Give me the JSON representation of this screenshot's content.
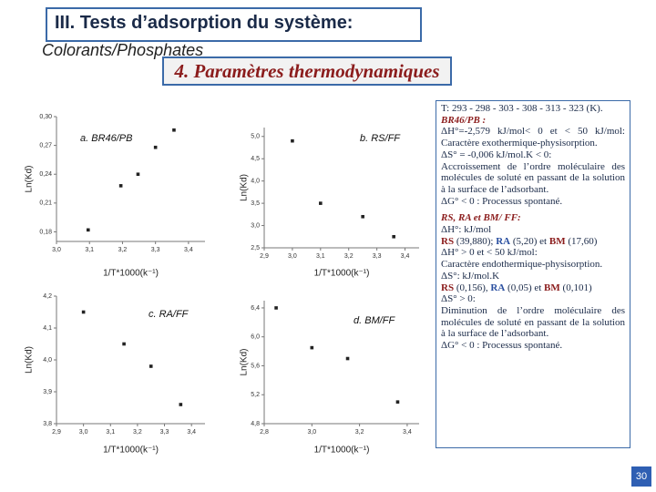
{
  "header": {
    "title": "III. Tests d’adsorption du système:",
    "subtitle": "Colorants/Phosphates",
    "section": "4. Paramètres thermodynamiques"
  },
  "chart_data": [
    {
      "type": "scatter",
      "title": "a. BR46/PB",
      "xlabel": "1/T*1000(k⁻¹)",
      "ylabel": "Ln(Kd)",
      "color": "#222",
      "x": [
        3.096,
        3.195,
        3.247,
        3.3,
        3.356
      ],
      "y": [
        0.182,
        0.228,
        0.24,
        0.268,
        0.286
      ],
      "xlim": [
        3.0,
        3.45
      ],
      "ylim": [
        0.17,
        0.3
      ],
      "xticks": [
        {
          "value": 3.0,
          "label": "3,0"
        },
        {
          "value": 3.1,
          "label": "3,1"
        },
        {
          "value": 3.2,
          "label": "3,2"
        },
        {
          "value": 3.3,
          "label": "3,3"
        },
        {
          "value": 3.4,
          "label": "3,4"
        }
      ],
      "yticks": [
        {
          "value": 0.18,
          "label": "0,18"
        },
        {
          "value": 0.21,
          "label": "0,21"
        },
        {
          "value": 0.24,
          "label": "0,24"
        },
        {
          "value": 0.27,
          "label": "0,27"
        },
        {
          "value": 0.3,
          "label": "0,30"
        }
      ]
    },
    {
      "type": "scatter",
      "title": "b. RS/FF",
      "xlabel": "1/T*1000(k⁻¹)",
      "ylabel": "Ln(Kd)",
      "color": "#222",
      "x": [
        3.0,
        3.1,
        3.25,
        3.36
      ],
      "y": [
        4.9,
        3.5,
        3.2,
        2.75
      ],
      "xlim": [
        2.9,
        3.45
      ],
      "ylim": [
        2.5,
        5.2
      ],
      "xticks": [
        {
          "value": 2.9,
          "label": "2,9"
        },
        {
          "value": 3.0,
          "label": "3,0"
        },
        {
          "value": 3.1,
          "label": "3,1"
        },
        {
          "value": 3.2,
          "label": "3,2"
        },
        {
          "value": 3.3,
          "label": "3,3"
        },
        {
          "value": 3.4,
          "label": "3,4"
        }
      ],
      "yticks": [
        {
          "value": 2.5,
          "label": "2,5"
        },
        {
          "value": 3.0,
          "label": "3,0"
        },
        {
          "value": 3.5,
          "label": "3,5"
        },
        {
          "value": 4.0,
          "label": "4,0"
        },
        {
          "value": 4.5,
          "label": "4,5"
        },
        {
          "value": 5.0,
          "label": "5,0"
        }
      ]
    },
    {
      "type": "scatter",
      "title": "c. RA/FF",
      "xlabel": "1/T*1000(k⁻¹)",
      "ylabel": "Ln(Kd)",
      "color": "#222",
      "x": [
        3.0,
        3.15,
        3.25,
        3.36
      ],
      "y": [
        4.15,
        4.05,
        3.98,
        3.86
      ],
      "xlim": [
        2.9,
        3.45
      ],
      "ylim": [
        3.8,
        4.2
      ],
      "xticks": [
        {
          "value": 2.9,
          "label": "2,9"
        },
        {
          "value": 3.0,
          "label": "3,0"
        },
        {
          "value": 3.1,
          "label": "3,1"
        },
        {
          "value": 3.2,
          "label": "3,2"
        },
        {
          "value": 3.3,
          "label": "3,3"
        },
        {
          "value": 3.4,
          "label": "3,4"
        }
      ],
      "yticks": [
        {
          "value": 3.8,
          "label": "3,8"
        },
        {
          "value": 3.9,
          "label": "3,9"
        },
        {
          "value": 4.0,
          "label": "4,0"
        },
        {
          "value": 4.1,
          "label": "4,1"
        },
        {
          "value": 4.2,
          "label": "4,2"
        }
      ]
    },
    {
      "type": "scatter",
      "title": "d. BM/FF",
      "xlabel": "1/T*1000(k⁻¹)",
      "ylabel": "Ln(Kd)",
      "color": "#222",
      "x": [
        2.85,
        3.0,
        3.15,
        3.36
      ],
      "y": [
        6.4,
        5.85,
        5.7,
        5.1
      ],
      "xlim": [
        2.8,
        3.45
      ],
      "ylim": [
        4.8,
        6.5
      ],
      "xticks": [
        {
          "value": 2.8,
          "label": "2,8"
        },
        {
          "value": 3.0,
          "label": "3,0"
        },
        {
          "value": 3.2,
          "label": "3,2"
        },
        {
          "value": 3.4,
          "label": "3,4"
        }
      ],
      "yticks": [
        {
          "value": 4.8,
          "label": "4,8"
        },
        {
          "value": 5.2,
          "label": "5,2"
        },
        {
          "value": 5.6,
          "label": "5,6"
        },
        {
          "value": 6.0,
          "label": "6,0"
        },
        {
          "value": 6.4,
          "label": "6,4"
        }
      ]
    }
  ],
  "text_panel": {
    "top": [
      "T: 293 - 298 - 303 - 308 - 313 - 323 (K).",
      "BR46/PB :",
      "ΔH°=-2,579 kJ/mol< 0 et < 50 kJ/mol: Caractère exothermique-physisorption.",
      "ΔS° = -0,006 kJ/mol.K < 0:",
      "Accroissement de l’ordre moléculaire des molécules de soluté en passant de la solution à la surface de l’adsorbant.",
      "ΔG° < 0 : Processus spontané."
    ],
    "bottom": [
      "RS, RA et BM/ FF:",
      "ΔH°: kJ/mol",
      [
        "RS",
        " (39,880); ",
        "RA",
        " (5,20) et ",
        "BM",
        " (17,60)"
      ],
      "ΔH° > 0 et < 50 kJ/mol:",
      "Caractère endothermique-physisorption.",
      "ΔS°: kJ/mol.K",
      [
        "RS",
        " (0,156), ",
        "RA",
        " (0,05) et ",
        "BM",
        " (0,101)"
      ],
      "ΔS° > 0:",
      "Diminution de l’ordre moléculaire des molécules de soluté en passant de la solution à la surface de l’adsorbant.",
      "ΔG° < 0 : Processus spontané."
    ]
  },
  "page_number": "30"
}
